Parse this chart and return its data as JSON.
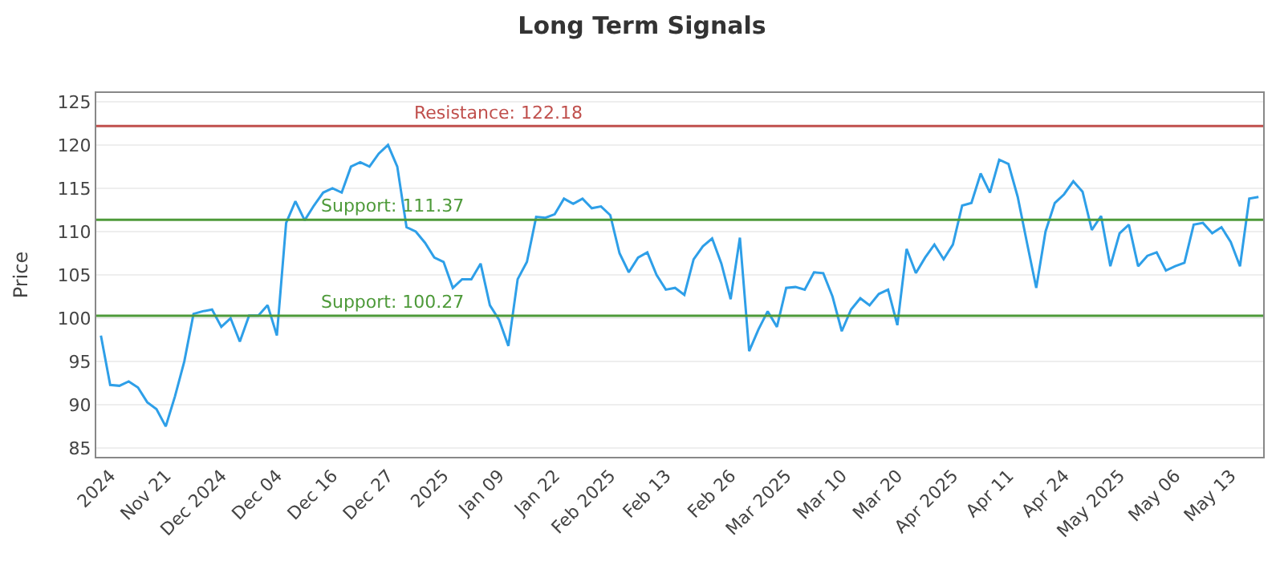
{
  "chart_data": {
    "type": "line",
    "title": "Long Term Signals",
    "ylabel": "Price",
    "categories": [
      null,
      "2024",
      null,
      null,
      null,
      null,
      null,
      "Nov 21",
      null,
      null,
      null,
      null,
      null,
      "Dec 2024",
      null,
      null,
      null,
      null,
      null,
      "Dec 04",
      null,
      null,
      null,
      null,
      null,
      "Dec 16",
      null,
      null,
      null,
      null,
      null,
      "Dec 27",
      null,
      null,
      null,
      null,
      null,
      "2025",
      null,
      null,
      null,
      null,
      null,
      "Jan 09",
      null,
      null,
      null,
      null,
      null,
      "Jan 22",
      null,
      null,
      null,
      null,
      null,
      "Feb 2025",
      null,
      null,
      null,
      null,
      null,
      "Feb 13",
      null,
      null,
      null,
      null,
      null,
      null,
      "Feb 26",
      null,
      null,
      null,
      null,
      null,
      "Mar 2025",
      null,
      null,
      null,
      null,
      null,
      "Mar 10",
      null,
      null,
      null,
      null,
      null,
      "Mar 20",
      null,
      null,
      null,
      null,
      null,
      "Apr 2025",
      null,
      null,
      null,
      null,
      null,
      "Apr 11",
      null,
      null,
      null,
      null,
      null,
      "Apr 24",
      null,
      null,
      null,
      null,
      null,
      "May 2025",
      null,
      null,
      null,
      null,
      null,
      "May 06",
      null,
      null,
      null,
      null,
      null,
      "May 13",
      null,
      null,
      null
    ],
    "series": [
      {
        "color": "#2e9fe8",
        "values": [
          98,
          92.3,
          92.2,
          92.7,
          92,
          90.3,
          89.5,
          87.5,
          91,
          95,
          100.5,
          100.8,
          101,
          99,
          100,
          97.3,
          100.3,
          100.3,
          101.5,
          98,
          111,
          113.5,
          111.3,
          113,
          114.5,
          115,
          114.5,
          117.5,
          118,
          117.5,
          119,
          120,
          117.5,
          110.5,
          110,
          108.7,
          107,
          106.5,
          103.5,
          104.5,
          104.5,
          106.3,
          101.5,
          99.8,
          96.8,
          104.5,
          106.5,
          111.7,
          111.6,
          112,
          113.8,
          113.2,
          113.8,
          112.7,
          112.9,
          111.9,
          107.5,
          105.3,
          107,
          107.6,
          105,
          103.3,
          103.5,
          102.7,
          106.8,
          108.3,
          109.2,
          106.3,
          102.2,
          109.3,
          96.2,
          98.7,
          100.8,
          99,
          103.5,
          103.6,
          103.3,
          105.3,
          105.2,
          102.5,
          98.5,
          101,
          102.3,
          101.5,
          102.8,
          103.3,
          99.2,
          108,
          105.2,
          107,
          108.5,
          106.8,
          108.5,
          113,
          113.3,
          116.7,
          114.5,
          118.3,
          117.8,
          114,
          108.7,
          103.5,
          110,
          113.3,
          114.3,
          115.8,
          114.6,
          110.2,
          111.8,
          106,
          109.8,
          110.8,
          106,
          107.2,
          107.6,
          105.5,
          106,
          106.4,
          110.8,
          111,
          109.8,
          110.5,
          108.8,
          106,
          113.8,
          114
        ]
      }
    ],
    "ylim": [
      84,
      126
    ],
    "yticks": [
      85,
      90,
      95,
      100,
      105,
      110,
      115,
      120,
      125
    ],
    "grid": "y",
    "marker": "none",
    "line_style": "solid",
    "ref_lines": [
      {
        "axis": "y",
        "value": 122.18,
        "label": "Resistance: 122.18",
        "color": "#c0504d"
      },
      {
        "axis": "y",
        "value": 111.37,
        "label": "Support: 111.37",
        "color": "#4e9a3a"
      },
      {
        "axis": "y",
        "value": 100.27,
        "label": "Support: 100.27",
        "color": "#4e9a3a"
      }
    ]
  }
}
